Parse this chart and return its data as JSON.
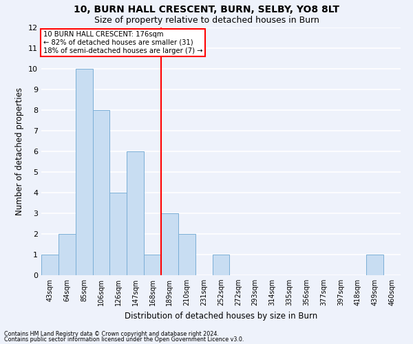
{
  "title_line1": "10, BURN HALL CRESCENT, BURN, SELBY, YO8 8LT",
  "title_line2": "Size of property relative to detached houses in Burn",
  "xlabel": "Distribution of detached houses by size in Burn",
  "ylabel": "Number of detached properties",
  "bar_labels": [
    "43sqm",
    "64sqm",
    "85sqm",
    "106sqm",
    "126sqm",
    "147sqm",
    "168sqm",
    "189sqm",
    "210sqm",
    "231sqm",
    "252sqm",
    "272sqm",
    "293sqm",
    "314sqm",
    "335sqm",
    "356sqm",
    "377sqm",
    "397sqm",
    "418sqm",
    "439sqm",
    "460sqm"
  ],
  "bar_values": [
    1,
    2,
    10,
    8,
    4,
    6,
    1,
    3,
    2,
    0,
    1,
    0,
    0,
    0,
    0,
    0,
    0,
    0,
    0,
    1,
    0
  ],
  "bar_color": "#c8ddf2",
  "bar_edge_color": "#7aaed6",
  "property_line_x": 7.0,
  "annotation_text": "10 BURN HALL CRESCENT: 176sqm\n← 82% of detached houses are smaller (31)\n18% of semi-detached houses are larger (7) →",
  "annotation_box_color": "white",
  "annotation_box_edge_color": "red",
  "vline_color": "red",
  "ylim": [
    0,
    12
  ],
  "yticks": [
    0,
    1,
    2,
    3,
    4,
    5,
    6,
    7,
    8,
    9,
    10,
    11,
    12
  ],
  "footnote1": "Contains HM Land Registry data © Crown copyright and database right 2024.",
  "footnote2": "Contains public sector information licensed under the Open Government Licence v3.0.",
  "background_color": "#eef2fb",
  "plot_background_color": "#eef2fb",
  "grid_color": "#ffffff",
  "tick_label_fontsize": 7,
  "axis_label_fontsize": 8.5,
  "title1_fontsize": 10,
  "title2_fontsize": 9,
  "footnote_fontsize": 5.8
}
